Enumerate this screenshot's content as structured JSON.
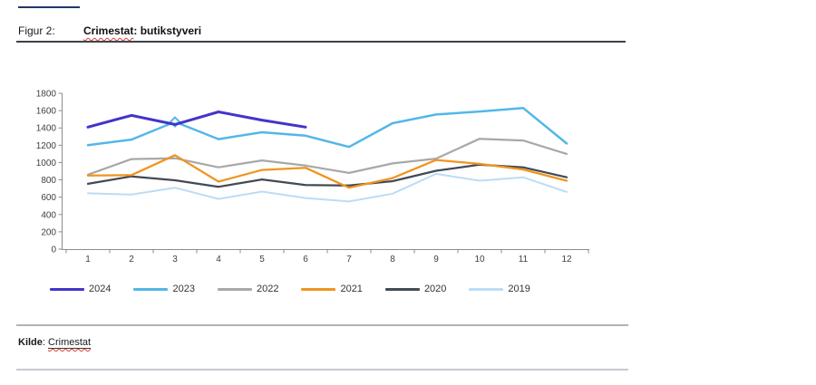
{
  "page": {
    "figure_label": "Figur 2:",
    "figure_title_word": "Crimestat",
    "figure_title_rest": ": butikstyveri",
    "source_label": "Kilde",
    "source_separator": ": ",
    "source_value": "Crimestat"
  },
  "colors": {
    "accent_rule": "#203864",
    "header_rule": "#3d434c",
    "footer_rule": "#bfc5cb",
    "spellcheck_red": "#e03c31",
    "axis": "#8c8c8c",
    "series_2024": "#4334cb",
    "series_2023": "#53b7e8",
    "series_2022": "#a8a8a8",
    "series_2021": "#f0941f",
    "series_2020": "#424a54",
    "series_2019": "#bcdcf5"
  },
  "chart_data": {
    "type": "line",
    "title": "Crimestat: butikstyveri",
    "xlabel": "",
    "ylabel": "",
    "x": [
      1,
      2,
      3,
      4,
      5,
      6,
      7,
      8,
      9,
      10,
      11,
      12
    ],
    "ylim": [
      0,
      1800
    ],
    "y_ticks": [
      0,
      200,
      400,
      600,
      800,
      1000,
      1200,
      1400,
      1600,
      1800
    ],
    "grid": false,
    "legend_position": "bottom-left",
    "series": [
      {
        "name": "2024",
        "color": "#4334cb",
        "values": [
          1410,
          1545,
          1440,
          1585,
          1490,
          1410,
          null,
          null,
          null,
          null,
          null,
          null
        ]
      },
      {
        "name": "2023",
        "color": "#53b7e8",
        "values": [
          1200,
          1265,
          1470,
          1270,
          1350,
          1310,
          1180,
          1455,
          1555,
          1590,
          1630,
          1220
        ],
        "marker": {
          "month": 3,
          "shape": "diamond"
        }
      },
      {
        "name": "2022",
        "color": "#a8a8a8",
        "values": [
          860,
          1040,
          1050,
          945,
          1025,
          965,
          880,
          990,
          1045,
          1275,
          1255,
          1100
        ]
      },
      {
        "name": "2021",
        "color": "#f0941f",
        "values": [
          850,
          855,
          1085,
          780,
          915,
          940,
          710,
          820,
          1030,
          985,
          920,
          790
        ]
      },
      {
        "name": "2020",
        "color": "#424a54",
        "values": [
          755,
          840,
          795,
          720,
          805,
          740,
          735,
          785,
          905,
          975,
          945,
          830
        ]
      },
      {
        "name": "2019",
        "color": "#bcdcf5",
        "values": [
          645,
          630,
          710,
          580,
          665,
          590,
          550,
          640,
          870,
          790,
          830,
          660
        ]
      }
    ]
  }
}
